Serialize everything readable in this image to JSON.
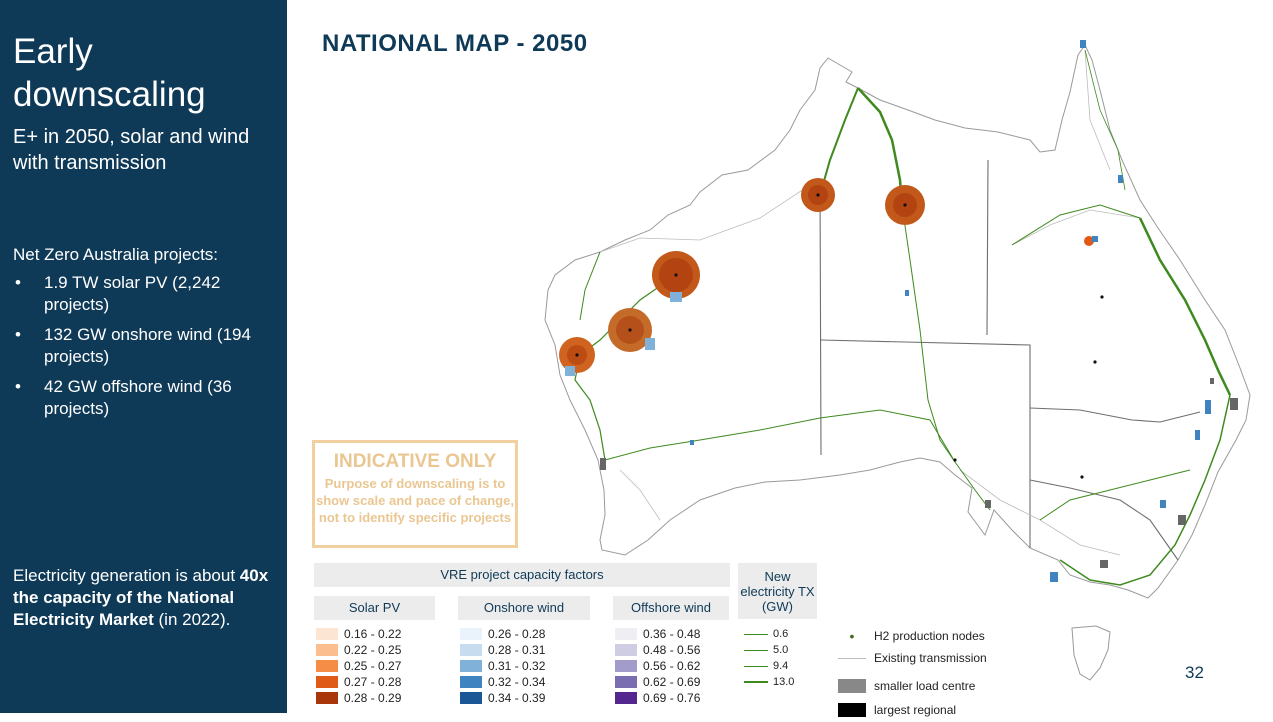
{
  "sidebar": {
    "title": "Early downscaling",
    "subtitle": "E+ in 2050, solar and wind with transmission",
    "projects_heading": "Net Zero Australia projects:",
    "bullets": [
      "1.9 TW solar PV (2,242 projects)",
      "132 GW onshore wind (194 projects)",
      "42 GW offshore wind (36 projects)"
    ],
    "electricity_prefix": "Electricity generation is about ",
    "electricity_bold": "40x the capacity of the National Electricity Market",
    "electricity_suffix": " (in 2022)."
  },
  "slide": {
    "title": "NATIONAL MAP - 2050",
    "page_number": "32"
  },
  "indicative": {
    "heading": "INDICATIVE ONLY",
    "text": "Purpose of downscaling is to show scale and pace of change, not to identify specific projects"
  },
  "legend": {
    "vre_title": "VRE project capacity factors",
    "solar": {
      "title": "Solar PV",
      "items": [
        {
          "label": "0.16 - 0.22",
          "color": "#fde5d3"
        },
        {
          "label": "0.22 - 0.25",
          "color": "#fbbf8f"
        },
        {
          "label": "0.25 - 0.27",
          "color": "#f58d47"
        },
        {
          "label": "0.27 - 0.28",
          "color": "#e05a17"
        },
        {
          "label": "0.28 - 0.29",
          "color": "#a8360a"
        }
      ]
    },
    "onshore": {
      "title": "Onshore wind",
      "items": [
        {
          "label": "0.26 - 0.28",
          "color": "#eaf2fb"
        },
        {
          "label": "0.28 - 0.31",
          "color": "#c8dcef"
        },
        {
          "label": "0.31 - 0.32",
          "color": "#7fb1d9"
        },
        {
          "label": "0.32 - 0.34",
          "color": "#3f83c0"
        },
        {
          "label": "0.34 - 0.39",
          "color": "#1b5697"
        }
      ]
    },
    "offshore": {
      "title": "Offshore wind",
      "items": [
        {
          "label": "0.36 - 0.48",
          "color": "#efeff3"
        },
        {
          "label": "0.48 - 0.56",
          "color": "#cfcde4"
        },
        {
          "label": "0.56 - 0.62",
          "color": "#a29ccb"
        },
        {
          "label": "0.62 - 0.69",
          "color": "#7b6db2"
        },
        {
          "label": "0.69 - 0.76",
          "color": "#54278f"
        }
      ]
    },
    "tx": {
      "title": "New electricity TX (GW)",
      "items": [
        "0.6",
        "5.0",
        "9.4",
        "13.0"
      ],
      "color": "#3f8a1e"
    },
    "other": {
      "h2": "H2 production nodes",
      "existing": "Existing transmission",
      "smaller": "smaller load centre",
      "largest": "largest regional"
    }
  }
}
